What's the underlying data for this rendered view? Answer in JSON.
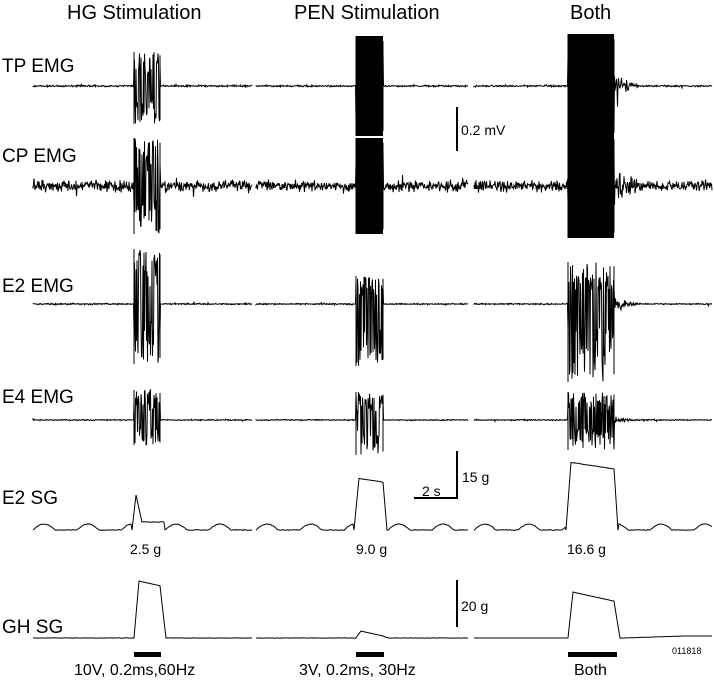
{
  "column_titles": [
    "HG Stimulation",
    "PEN Stimulation",
    "Both"
  ],
  "row_labels": [
    "TP EMG",
    "CP EMG",
    "E2 EMG",
    "E4 EMG",
    "E2 SG",
    "GH SG"
  ],
  "scale_bars": {
    "emg_voltage": "0.2 mV",
    "force_e2": "15 g",
    "time": "2 s",
    "force_gh": "20 g"
  },
  "peak_forces": [
    "2.5 g",
    "9.0 g",
    "16.6 g"
  ],
  "stimulus_params": [
    "10V, 0.2ms,60Hz",
    "3V, 0.2ms, 30Hz",
    "Both"
  ],
  "figure_id": "011818",
  "colors": {
    "trace": "#000000",
    "background": "#ffffff"
  }
}
